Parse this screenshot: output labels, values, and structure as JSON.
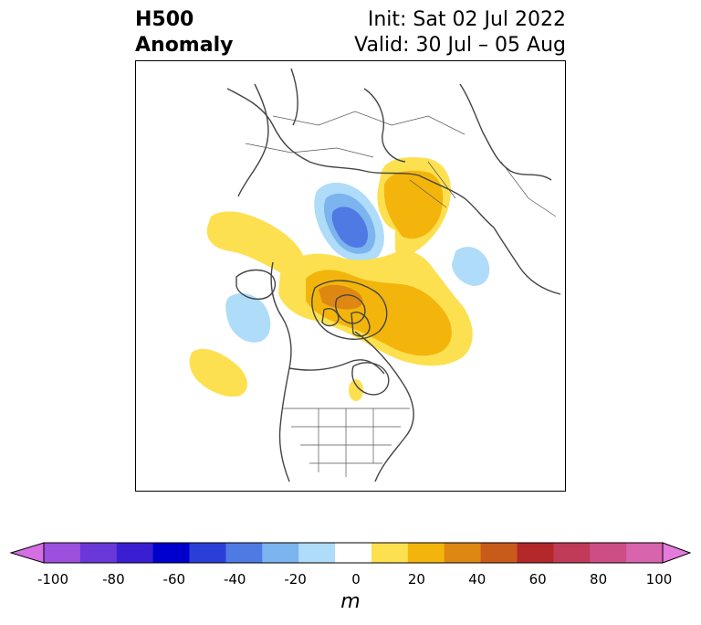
{
  "title": {
    "left_line1": "H500",
    "left_line2": "Anomaly",
    "right_line1": "Init: Sat 02 Jul 2022",
    "right_line2": "Valid: 30 Jul – 05 Aug"
  },
  "map": {
    "variable": "500 hPa geopotential height anomaly",
    "region": "North America and Arctic (polar stereographic)",
    "features": [
      {
        "name": "positive-anomaly-eastern-siberia",
        "sign": "positive"
      },
      {
        "name": "negative-anomaly-laptev-kara-sea",
        "sign": "negative"
      },
      {
        "name": "negative-anomaly-beaufort-chukchi",
        "sign": "negative"
      },
      {
        "name": "positive-anomaly-canadian-archipelago-greenland",
        "sign": "positive"
      },
      {
        "name": "positive-anomaly-northeast-pacific-band",
        "sign": "positive"
      },
      {
        "name": "negative-anomaly-gulf-of-alaska",
        "sign": "negative"
      },
      {
        "name": "positive-anomaly-northeast-pacific-offshore",
        "sign": "positive"
      },
      {
        "name": "positive-anomaly-great-lakes-small",
        "sign": "positive"
      }
    ]
  },
  "colorbar": {
    "unit": "m",
    "min": -100,
    "max": 100,
    "step": 10,
    "tick_labels": [
      "-100",
      "-80",
      "-60",
      "-40",
      "-20",
      "0",
      "20",
      "40",
      "60",
      "80",
      "100"
    ],
    "colors": [
      "#d36ee3",
      "#9d4fdd",
      "#6a37d8",
      "#3a1fd2",
      "#0000cd",
      "#2a3fd8",
      "#4f79e3",
      "#7bb4ef",
      "#afdcf8",
      "#ffffff",
      "#fde04f",
      "#f3b50c",
      "#de8712",
      "#c85b1a",
      "#b4282a",
      "#c03b58",
      "#cd4e84",
      "#d764ad",
      "#e57bdc"
    ]
  }
}
